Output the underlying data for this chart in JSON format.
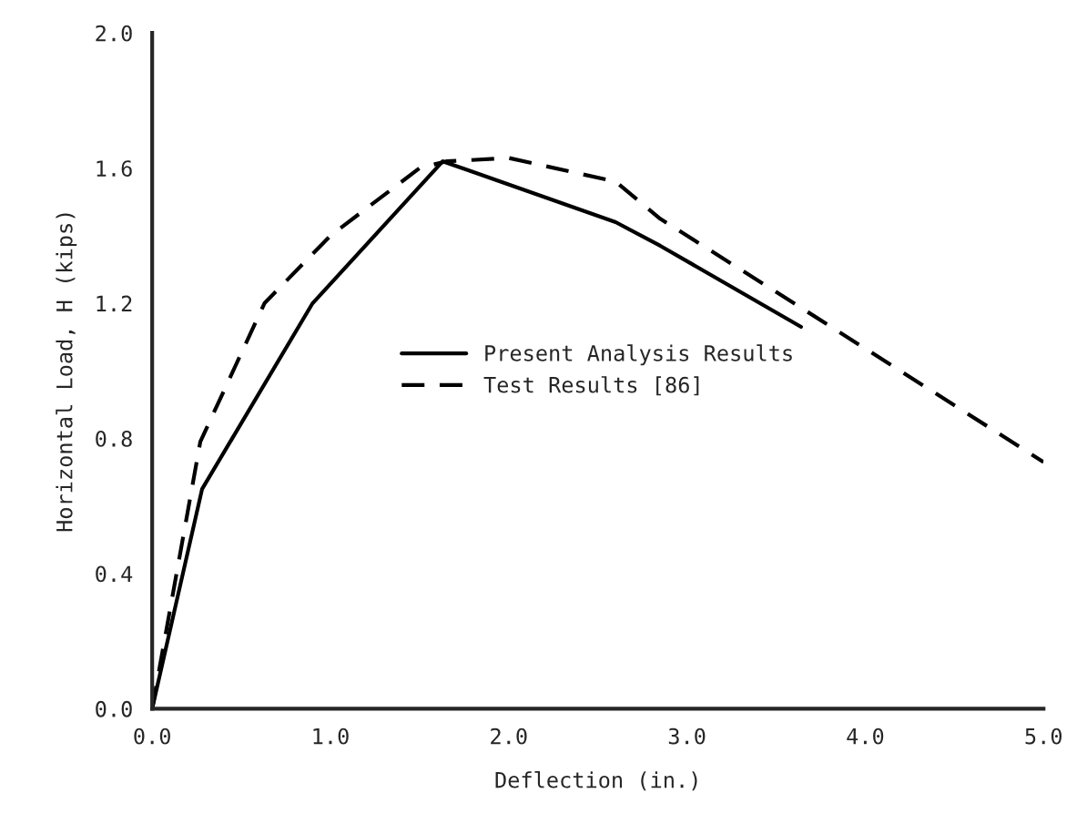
{
  "chart_data": {
    "type": "line",
    "xlabel": "Deflection (in.)",
    "ylabel": "Horizontal Load, H (kips)",
    "xlim": [
      0,
      5.0
    ],
    "ylim": [
      0,
      2.0
    ],
    "xticks": [
      {
        "value": 0,
        "label": "0.0"
      },
      {
        "value": 1,
        "label": "1.0"
      },
      {
        "value": 2,
        "label": "2.0"
      },
      {
        "value": 3,
        "label": "3.0"
      },
      {
        "value": 4,
        "label": "4.0"
      },
      {
        "value": 5,
        "label": "5.0"
      }
    ],
    "yticks": [
      {
        "value": 0,
        "label": "0.0"
      },
      0.4,
      0.8,
      1.2,
      1.6,
      {
        "value": 2,
        "label": "2.0"
      }
    ],
    "grid": false,
    "legend": "center",
    "marker": "none",
    "series": [
      {
        "name": "Present Analysis Results",
        "color": "#000000",
        "line_style": "solid",
        "x": [
          0,
          0.28,
          0.9,
          1.63,
          2.6,
          2.85,
          3.64
        ],
        "values": [
          0,
          0.65,
          1.2,
          1.62,
          1.44,
          1.37,
          1.13
        ]
      },
      {
        "name": "Test Results [86]",
        "color": "#000000",
        "line_style": "dashed",
        "x": [
          0,
          0.27,
          0.63,
          1.0,
          1.5,
          1.65,
          2.0,
          2.6,
          2.85,
          3.6,
          5.0
        ],
        "values": [
          0,
          0.79,
          1.2,
          1.4,
          1.6,
          1.62,
          1.63,
          1.56,
          1.45,
          1.2,
          0.73
        ]
      }
    ]
  }
}
